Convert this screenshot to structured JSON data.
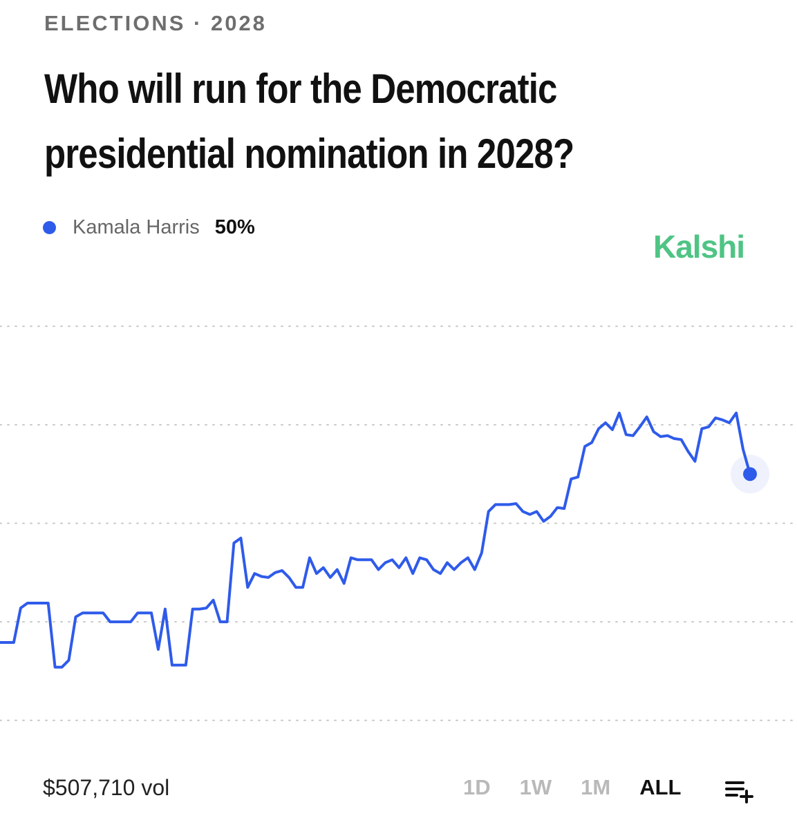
{
  "header": {
    "category": "ELECTIONS · 2028",
    "title": "Who will run for the Democratic presidential nomination in 2028?",
    "brand": "Kalshi"
  },
  "chart_data": {
    "type": "line",
    "series": [
      {
        "name": "Kamala Harris",
        "color": "#2f5bea",
        "current": {
          "value": 50,
          "label": "50%"
        },
        "values": [
          32.9,
          32.9,
          32.9,
          36.4,
          36.9,
          36.9,
          36.9,
          36.9,
          30.4,
          30.4,
          31.1,
          35.5,
          35.9,
          35.9,
          35.9,
          35.9,
          35,
          35,
          35,
          35,
          35.9,
          35.9,
          35.9,
          32.2,
          36.3,
          30.6,
          30.6,
          30.6,
          36.3,
          36.3,
          36.4,
          37.2,
          35,
          35,
          43,
          43.5,
          38.5,
          39.9,
          39.6,
          39.5,
          40,
          40.2,
          39.5,
          38.5,
          38.5,
          41.5,
          39.9,
          40.5,
          39.5,
          40.3,
          38.9,
          41.5,
          41.3,
          41.3,
          41.3,
          40.3,
          41,
          41.3,
          40.5,
          41.5,
          39.9,
          41.5,
          41.3,
          40.3,
          39.9,
          41,
          40.3,
          41,
          41.5,
          40.3,
          42,
          46.2,
          46.9,
          46.9,
          46.9,
          47,
          46.2,
          45.9,
          46.2,
          45.2,
          45.7,
          46.6,
          46.5,
          49.5,
          49.7,
          52.8,
          53.2,
          54.6,
          55.2,
          54.5,
          56.2,
          54,
          53.9,
          54.8,
          55.8,
          54.3,
          53.8,
          53.9,
          53.6,
          53.5,
          52.3,
          51.3,
          54.6,
          54.8,
          55.7,
          55.5,
          55.2,
          56.2,
          52.5,
          50
        ]
      }
    ],
    "ylim": [
      20,
      70
    ],
    "yticks": [
      25,
      35,
      45,
      55,
      65
    ],
    "grid": true
  },
  "footer": {
    "volume": "$507,710 vol",
    "ranges": [
      "1D",
      "1W",
      "1M",
      "ALL"
    ],
    "selected_range": "ALL"
  }
}
